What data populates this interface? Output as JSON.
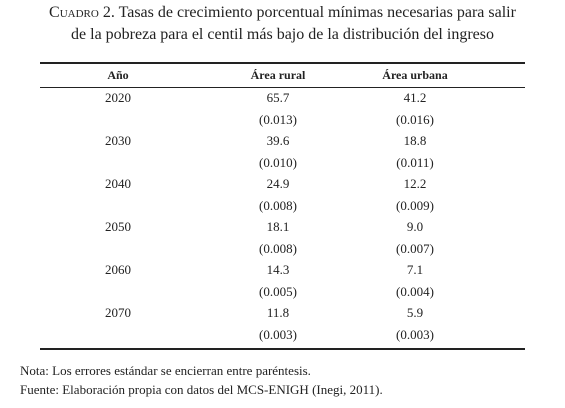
{
  "caption": {
    "label": "Cuadro 2.",
    "lines": [
      "Tasas de crecimiento porcentual mínimas necesarias para salir",
      "de la pobreza para el centil más bajo de la distribución del ingreso"
    ]
  },
  "table": {
    "headers": [
      "Año",
      "Área rural",
      "Área urbana"
    ],
    "rows": [
      {
        "year": "2020",
        "rural": "65.7",
        "urban": "41.2",
        "rural_se": "(0.013)",
        "urban_se": "(0.016)"
      },
      {
        "year": "2030",
        "rural": "39.6",
        "urban": "18.8",
        "rural_se": "(0.010)",
        "urban_se": "(0.011)"
      },
      {
        "year": "2040",
        "rural": "24.9",
        "urban": "12.2",
        "rural_se": "(0.008)",
        "urban_se": "(0.009)"
      },
      {
        "year": "2050",
        "rural": "18.1",
        "urban": "9.0",
        "rural_se": "(0.008)",
        "urban_se": "(0.007)"
      },
      {
        "year": "2060",
        "rural": "14.3",
        "urban": "7.1",
        "rural_se": "(0.005)",
        "urban_se": "(0.004)"
      },
      {
        "year": "2070",
        "rural": "11.8",
        "urban": "5.9",
        "rural_se": "(0.003)",
        "urban_se": "(0.003)"
      }
    ]
  },
  "notes": [
    "Nota: Los errores estándar se encierran entre paréntesis.",
    "Fuente: Elaboración propia con datos del MCS-ENIGH (Inegi, 2011)."
  ]
}
